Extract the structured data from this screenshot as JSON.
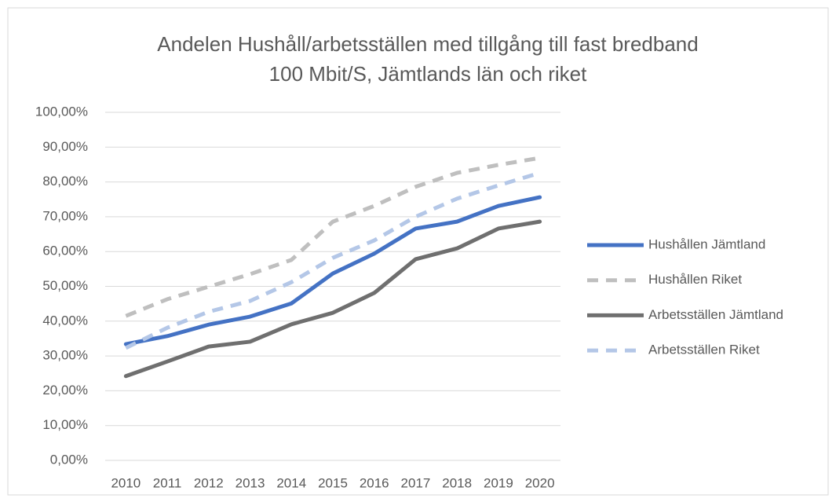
{
  "chart_data": {
    "type": "line",
    "title": "Andelen Hushåll/arbetsställen med tillgång till fast bredband",
    "subtitle": "100 Mbit/S, Jämtlands län och riket",
    "categories": [
      "2010",
      "2011",
      "2012",
      "2013",
      "2014",
      "2015",
      "2016",
      "2017",
      "2018",
      "2019",
      "2020"
    ],
    "series": [
      {
        "name": "Hushållen Jämtland",
        "color": "#4472c4",
        "dashed": false,
        "values": [
          33.4,
          35.7,
          39.0,
          41.3,
          45.1,
          53.7,
          59.4,
          66.6,
          68.6,
          73.1,
          75.6
        ]
      },
      {
        "name": "Hushållen Riket",
        "color": "#bfbfbf",
        "dashed": true,
        "values": [
          41.5,
          46.3,
          49.9,
          53.5,
          57.6,
          68.6,
          73.1,
          78.6,
          82.6,
          84.9,
          86.9
        ]
      },
      {
        "name": "Arbetsställen Jämtland",
        "color": "#6f6f6f",
        "dashed": false,
        "values": [
          24.2,
          28.4,
          32.7,
          34.1,
          39.1,
          42.4,
          48.1,
          57.8,
          60.9,
          66.6,
          68.6
        ]
      },
      {
        "name": "Arbetsställen Riket",
        "color": "#b4c7e7",
        "dashed": true,
        "values": [
          32.3,
          38.1,
          42.7,
          45.8,
          51.2,
          58.2,
          63.2,
          70.0,
          75.2,
          79.0,
          82.6
        ]
      }
    ],
    "ylim": [
      0,
      100
    ],
    "yticks": [
      {
        "value": 0,
        "label": "0,00%"
      },
      {
        "value": 10,
        "label": "10,00%"
      },
      {
        "value": 20,
        "label": "20,00%"
      },
      {
        "value": 30,
        "label": "30,00%"
      },
      {
        "value": 40,
        "label": "40,00%"
      },
      {
        "value": 50,
        "label": "50,00%"
      },
      {
        "value": 60,
        "label": "60,00%"
      },
      {
        "value": 70,
        "label": "70,00%"
      },
      {
        "value": 80,
        "label": "80,00%"
      },
      {
        "value": 90,
        "label": "90,00%"
      },
      {
        "value": 100,
        "label": "100,00%"
      }
    ],
    "grid": true,
    "legend": "right"
  }
}
